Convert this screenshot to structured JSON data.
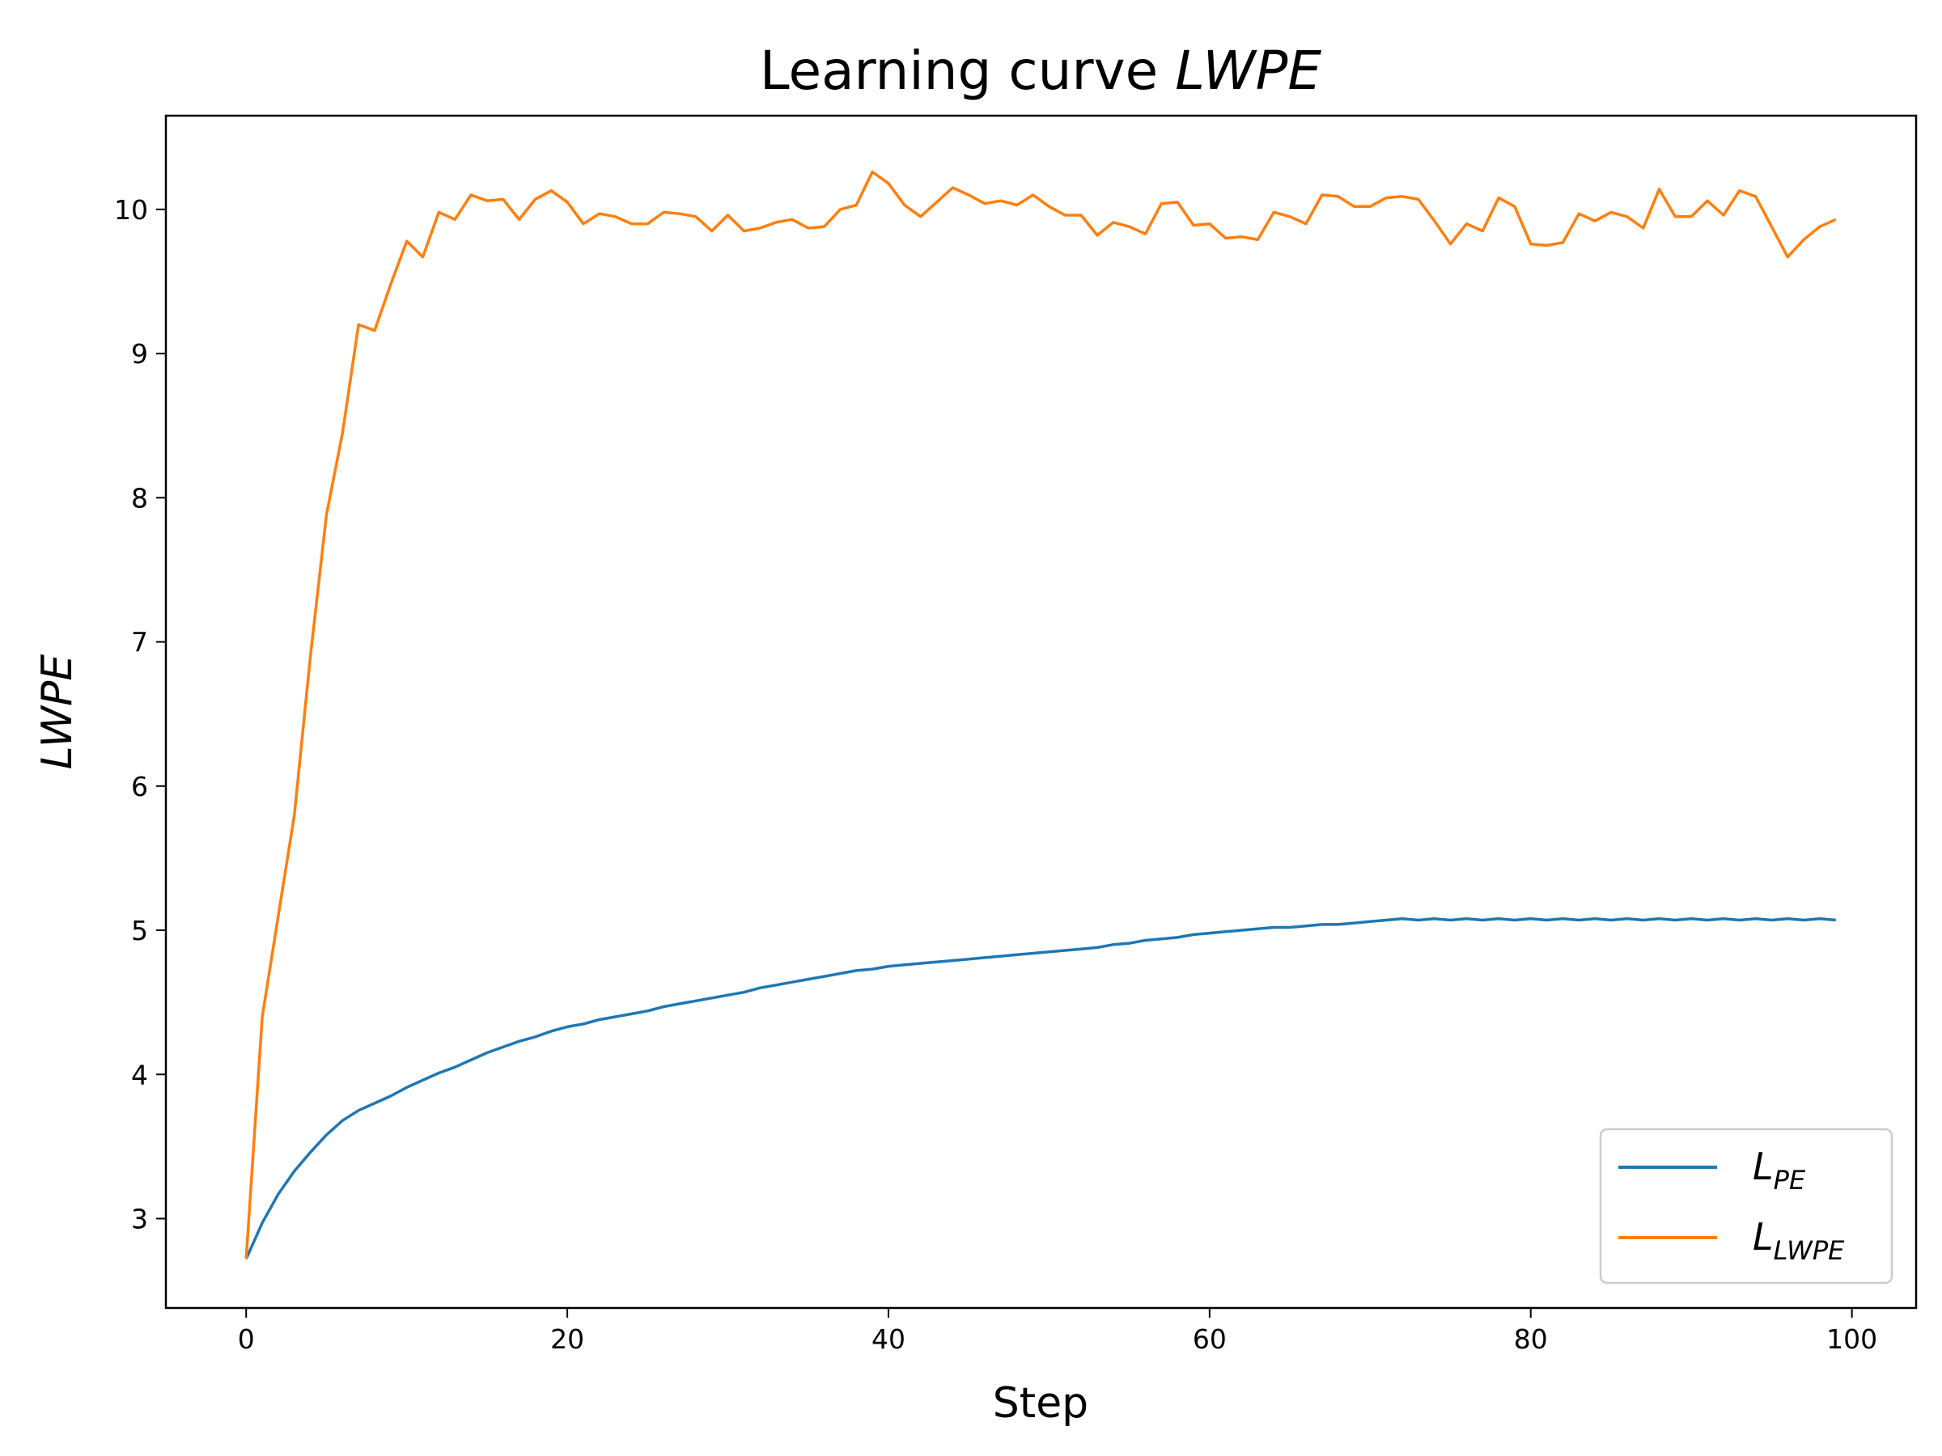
{
  "chart_data": {
    "type": "line",
    "title_prefix": "Learning curve ",
    "title_italic": "LWPE",
    "xlabel": "Step",
    "ylabel": "LWPE",
    "xlim": [
      -5,
      104
    ],
    "ylim": [
      2.38,
      10.65
    ],
    "xticks": [
      0,
      20,
      40,
      60,
      80,
      100
    ],
    "yticks": [
      3,
      4,
      5,
      6,
      7,
      8,
      9,
      10
    ],
    "legend_position": "lower right",
    "grid": false,
    "series": [
      {
        "name": "L_PE",
        "legend_main": "L",
        "legend_sub": "PE",
        "color": "#1f77b4",
        "x": [
          0,
          1,
          2,
          3,
          4,
          5,
          6,
          7,
          8,
          9,
          10,
          11,
          12,
          13,
          14,
          15,
          16,
          17,
          18,
          19,
          20,
          21,
          22,
          23,
          24,
          25,
          26,
          27,
          28,
          29,
          30,
          31,
          32,
          33,
          34,
          35,
          36,
          37,
          38,
          39,
          40,
          41,
          42,
          43,
          44,
          45,
          46,
          47,
          48,
          49,
          50,
          51,
          52,
          53,
          54,
          55,
          56,
          57,
          58,
          59,
          60,
          61,
          62,
          63,
          64,
          65,
          66,
          67,
          68,
          69,
          70,
          71,
          72,
          73,
          74,
          75,
          76,
          77,
          78,
          79,
          80,
          81,
          82,
          83,
          84,
          85,
          86,
          87,
          88,
          89,
          90,
          91,
          92,
          93,
          94,
          95,
          96,
          97,
          98,
          99
        ],
        "y": [
          2.72,
          2.97,
          3.17,
          3.33,
          3.46,
          3.58,
          3.68,
          3.75,
          3.8,
          3.85,
          3.91,
          3.96,
          4.01,
          4.05,
          4.1,
          4.15,
          4.19,
          4.23,
          4.26,
          4.3,
          4.33,
          4.35,
          4.38,
          4.4,
          4.42,
          4.44,
          4.47,
          4.49,
          4.51,
          4.53,
          4.55,
          4.57,
          4.6,
          4.62,
          4.64,
          4.66,
          4.68,
          4.7,
          4.72,
          4.73,
          4.75,
          4.76,
          4.77,
          4.78,
          4.79,
          4.8,
          4.81,
          4.82,
          4.83,
          4.84,
          4.85,
          4.86,
          4.87,
          4.88,
          4.9,
          4.91,
          4.93,
          4.94,
          4.95,
          4.97,
          4.98,
          4.99,
          5.0,
          5.01,
          5.02,
          5.02,
          5.03,
          5.04,
          5.04,
          5.05,
          5.06,
          5.07,
          5.08,
          5.07,
          5.08,
          5.07,
          5.08,
          5.07,
          5.08,
          5.07,
          5.08,
          5.07,
          5.08,
          5.07,
          5.08,
          5.07,
          5.08,
          5.07,
          5.08,
          5.07,
          5.08,
          5.07,
          5.08,
          5.07,
          5.08,
          5.07,
          5.08,
          5.07,
          5.08,
          5.07
        ]
      },
      {
        "name": "L_LWPE",
        "legend_main": "L",
        "legend_sub": "LWPE",
        "color": "#ff7f0e",
        "x": [
          0,
          1,
          2,
          3,
          4,
          5,
          6,
          7,
          8,
          9,
          10,
          11,
          12,
          13,
          14,
          15,
          16,
          17,
          18,
          19,
          20,
          21,
          22,
          23,
          24,
          25,
          26,
          27,
          28,
          29,
          30,
          31,
          32,
          33,
          34,
          35,
          36,
          37,
          38,
          39,
          40,
          41,
          42,
          43,
          44,
          45,
          46,
          47,
          48,
          49,
          50,
          51,
          52,
          53,
          54,
          55,
          56,
          57,
          58,
          59,
          60,
          61,
          62,
          63,
          64,
          65,
          66,
          67,
          68,
          69,
          70,
          71,
          72,
          73,
          74,
          75,
          76,
          77,
          78,
          79,
          80,
          81,
          82,
          83,
          84,
          85,
          86,
          87,
          88,
          89,
          90,
          91,
          92,
          93,
          94,
          95,
          96,
          97,
          98,
          99
        ],
        "y": [
          2.72,
          4.4,
          5.1,
          5.8,
          6.9,
          7.88,
          8.45,
          9.2,
          9.16,
          9.48,
          9.78,
          9.67,
          9.98,
          9.93,
          10.1,
          10.06,
          10.07,
          9.93,
          10.07,
          10.13,
          10.05,
          9.9,
          9.97,
          9.95,
          9.9,
          9.9,
          9.98,
          9.97,
          9.95,
          9.85,
          9.96,
          9.85,
          9.87,
          9.91,
          9.93,
          9.87,
          9.88,
          10.0,
          10.03,
          10.26,
          10.18,
          10.03,
          9.95,
          10.05,
          10.15,
          10.1,
          10.04,
          10.06,
          10.03,
          10.1,
          10.02,
          9.96,
          9.96,
          9.82,
          9.91,
          9.88,
          9.83,
          10.04,
          10.05,
          9.89,
          9.9,
          9.8,
          9.81,
          9.79,
          9.98,
          9.95,
          9.9,
          10.1,
          10.09,
          10.02,
          10.02,
          10.08,
          10.09,
          10.07,
          9.92,
          9.76,
          9.9,
          9.85,
          10.08,
          10.02,
          9.76,
          9.75,
          9.77,
          9.97,
          9.92,
          9.98,
          9.95,
          9.87,
          10.14,
          9.95,
          9.95,
          10.06,
          9.96,
          10.13,
          10.09,
          9.88,
          9.67,
          9.79,
          9.88,
          9.93
        ]
      }
    ]
  }
}
